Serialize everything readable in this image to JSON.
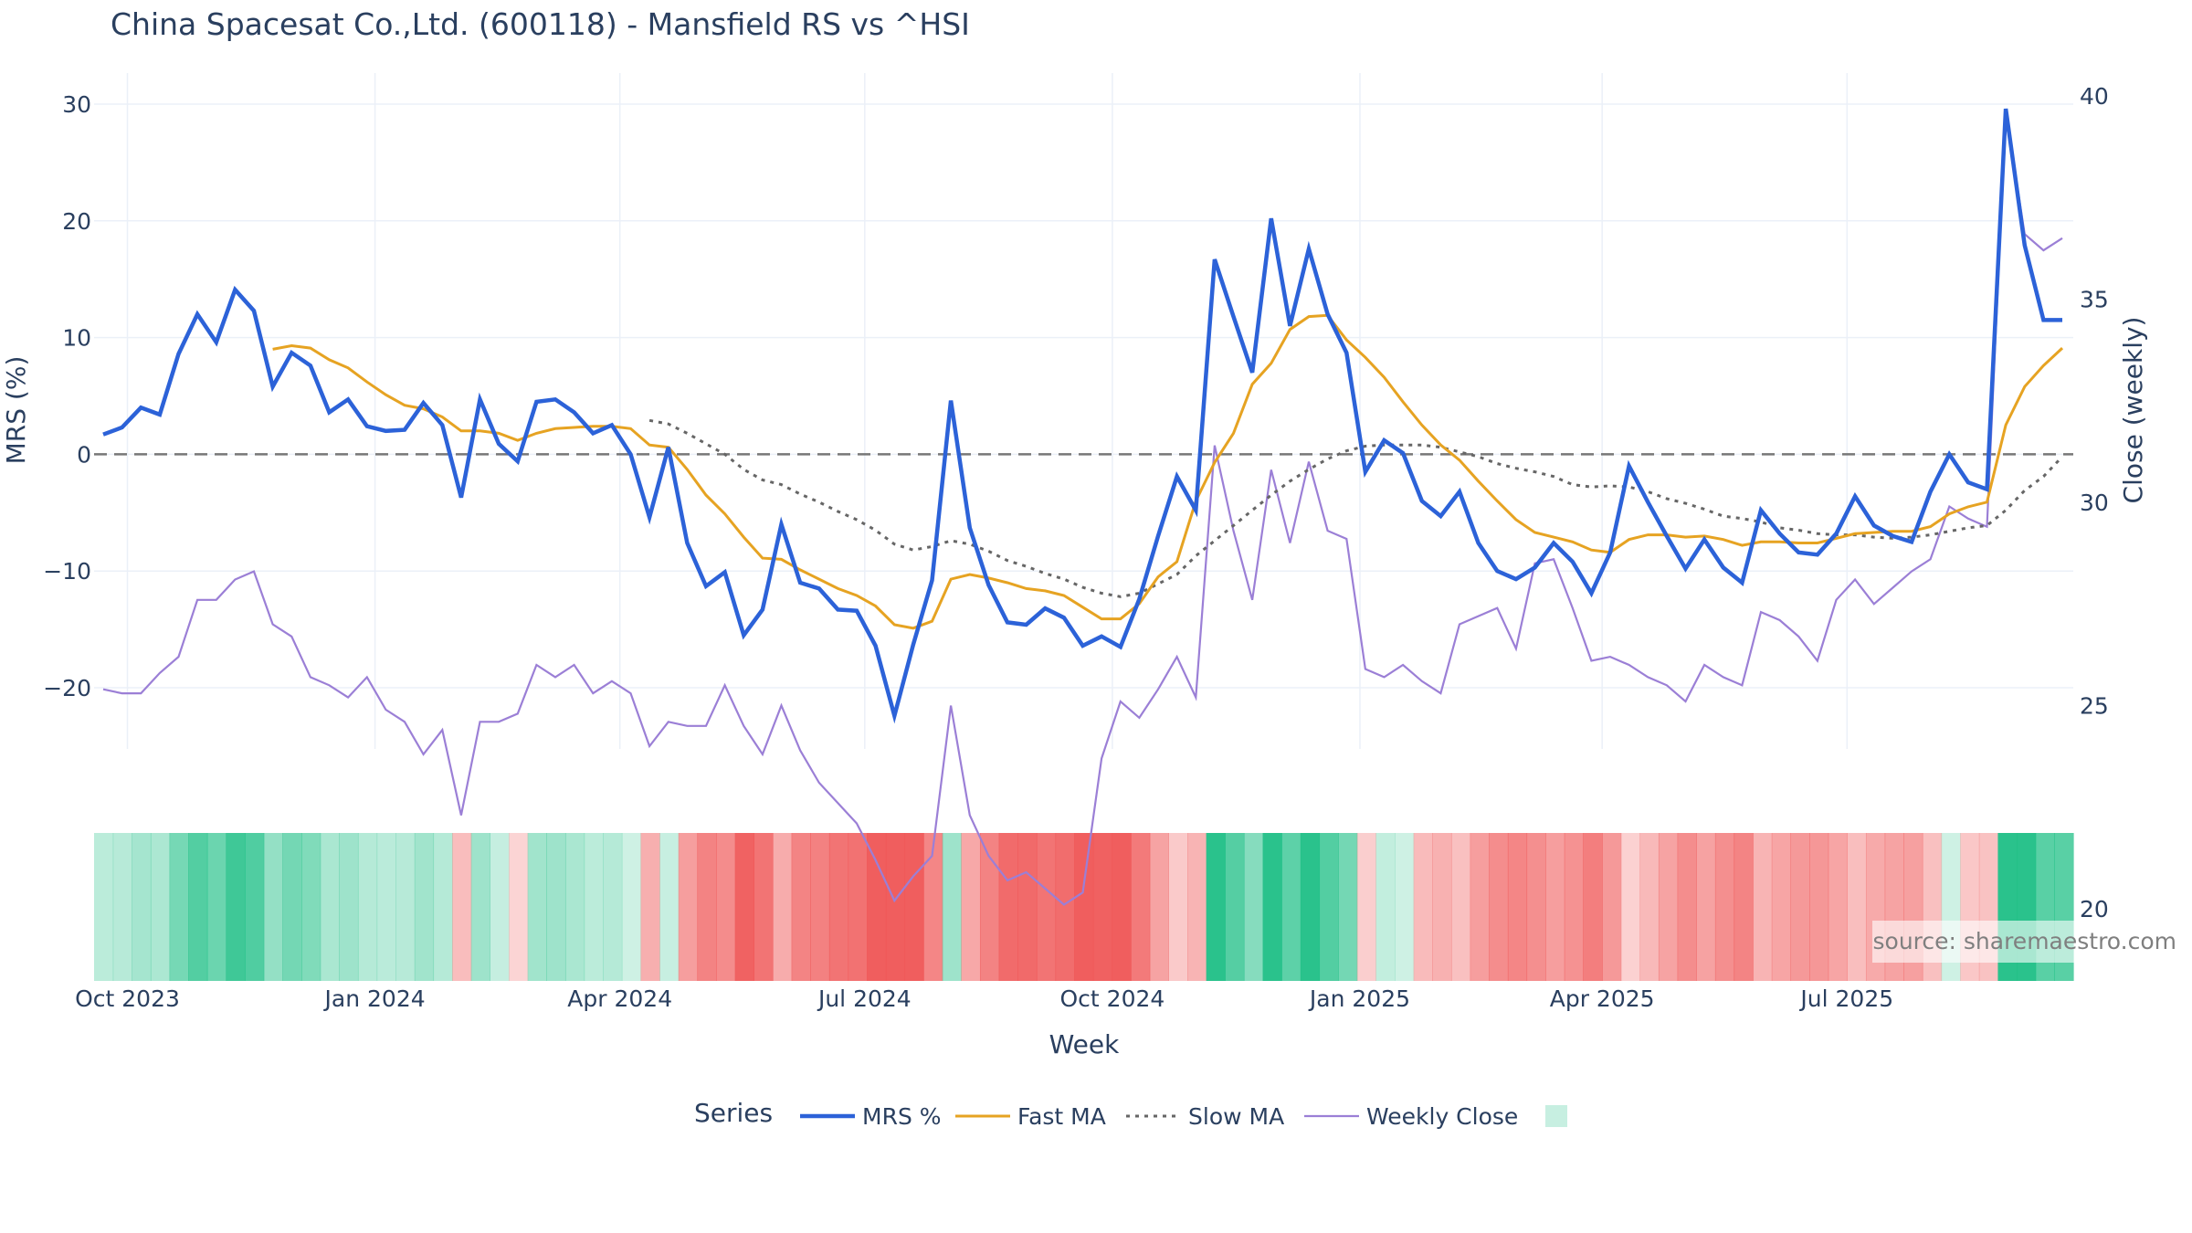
{
  "title": "China Spacesat Co.,Ltd. (600118) - Mansfield RS vs ^HSI",
  "source": "source: sharemaestro.com",
  "legend": {
    "title": "Series",
    "items": [
      {
        "label": "MRS %",
        "color": "#2c62d8",
        "style": "solid-thick"
      },
      {
        "label": "Fast MA",
        "color": "#e6a322",
        "style": "solid"
      },
      {
        "label": "Slow MA",
        "color": "#666666",
        "style": "dotted"
      },
      {
        "label": "Weekly Close",
        "color": "#9b7fd6",
        "style": "solid-thin"
      }
    ]
  },
  "colors": {
    "mrs": "#2c62d8",
    "fast": "#e6a322",
    "slow": "#666666",
    "close": "#9b7fd6",
    "green": "#1fbf86",
    "red": "#ef5555",
    "grid": "#ebf0f8"
  },
  "chart_data": {
    "type": "line",
    "title": "China Spacesat Co.,Ltd. (600118) - Mansfield RS vs ^HSI",
    "xlabel": "Week",
    "ylabel": "MRS (%)",
    "y2label": "Close (weekly)",
    "ylim": [
      -25,
      30
    ],
    "y2lim": [
      20,
      40
    ],
    "yticks": [
      -20,
      -10,
      0,
      10,
      20,
      30
    ],
    "y2ticks": [
      20,
      25,
      30,
      35,
      40
    ],
    "xticks": [
      "Oct 2023",
      "Jan 2024",
      "Apr 2024",
      "Jul 2024",
      "Oct 2024",
      "Jan 2025",
      "Apr 2025",
      "Jul 2025"
    ],
    "x_start": "2023-09-22",
    "x_step_days": 7,
    "series": [
      {
        "name": "MRS %",
        "values": [
          1.7,
          2.3,
          4.0,
          3.4,
          8.6,
          12.0,
          9.6,
          14.1,
          12.3,
          5.8,
          8.7,
          7.6,
          3.6,
          4.7,
          2.4,
          2.0,
          2.1,
          4.4,
          2.5,
          -3.7,
          4.7,
          0.9,
          -0.6,
          4.5,
          4.7,
          3.6,
          1.8,
          2.5,
          0.0,
          -5.4,
          0.6,
          -7.6,
          -11.3,
          -10.1,
          -15.5,
          -13.3,
          -6.0,
          -11.0,
          -11.5,
          -13.3,
          -13.4,
          -16.4,
          -22.4,
          -16.3,
          -10.8,
          4.6,
          -6.3,
          -11.2,
          -14.4,
          -14.6,
          -13.2,
          -14.0,
          -16.4,
          -15.6,
          -16.5,
          -12.4,
          -7.0,
          -1.9,
          -4.8,
          16.7,
          11.8,
          7.0,
          20.2,
          11.0,
          17.6,
          12.0,
          8.7,
          -1.5,
          1.2,
          0.1,
          -4.0,
          -5.3,
          -3.2,
          -7.6,
          -10.0,
          -10.7,
          -9.7,
          -7.6,
          -9.2,
          -11.9,
          -8.4,
          -1.0,
          -4.1,
          -7.0,
          -9.8,
          -7.3,
          -9.7,
          -11.0,
          -4.8,
          -6.8,
          -8.4,
          -8.6,
          -6.8,
          -3.6,
          -6.1,
          -7.0,
          -7.5,
          -3.2,
          0.0,
          -2.4,
          -3.0,
          29.6,
          17.9,
          11.5,
          11.5
        ]
      },
      {
        "name": "Fast MA",
        "values": [
          null,
          null,
          null,
          null,
          null,
          null,
          null,
          null,
          null,
          9.0,
          9.3,
          9.1,
          8.1,
          7.4,
          6.2,
          5.1,
          4.2,
          3.9,
          3.2,
          2.0,
          2.0,
          1.8,
          1.2,
          1.8,
          2.2,
          2.3,
          2.4,
          2.4,
          2.2,
          0.8,
          0.6,
          -1.3,
          -3.5,
          -5.1,
          -7.1,
          -8.9,
          -9.0,
          -9.9,
          -10.7,
          -11.5,
          -12.1,
          -13.0,
          -14.6,
          -14.9,
          -14.3,
          -10.7,
          -10.3,
          -10.6,
          -11.0,
          -11.5,
          -11.7,
          -12.1,
          -13.1,
          -14.1,
          -14.1,
          -12.8,
          -10.5,
          -9.2,
          -4.0,
          -0.7,
          1.8,
          6.0,
          7.8,
          10.7,
          11.8,
          11.9,
          9.8,
          8.3,
          6.6,
          4.5,
          2.5,
          0.8,
          -0.5,
          -2.3,
          -4.0,
          -5.6,
          -6.7,
          -7.1,
          -7.5,
          -8.2,
          -8.4,
          -7.3,
          -6.9,
          -6.9,
          -7.1,
          -7.0,
          -7.3,
          -7.8,
          -7.5,
          -7.5,
          -7.6,
          -7.6,
          -7.2,
          -6.8,
          -6.7,
          -6.6,
          -6.6,
          -6.2,
          -5.1,
          -4.5,
          -4.1,
          2.5,
          5.8,
          7.6,
          9.1
        ]
      },
      {
        "name": "Slow MA",
        "values": [
          null,
          null,
          null,
          null,
          null,
          null,
          null,
          null,
          null,
          null,
          null,
          null,
          null,
          null,
          null,
          null,
          null,
          null,
          null,
          null,
          null,
          null,
          null,
          null,
          null,
          null,
          null,
          null,
          null,
          2.9,
          2.6,
          1.8,
          0.9,
          0.0,
          -1.3,
          -2.2,
          -2.6,
          -3.4,
          -4.1,
          -4.9,
          -5.6,
          -6.5,
          -7.7,
          -8.2,
          -7.9,
          -7.4,
          -7.7,
          -8.3,
          -9.1,
          -9.6,
          -10.2,
          -10.7,
          -11.4,
          -11.9,
          -12.2,
          -11.9,
          -11.1,
          -10.3,
          -8.7,
          -7.4,
          -6.1,
          -4.8,
          -3.5,
          -2.3,
          -1.3,
          -0.4,
          0.3,
          0.7,
          0.8,
          0.8,
          0.8,
          0.6,
          0.2,
          -0.2,
          -0.8,
          -1.2,
          -1.5,
          -1.9,
          -2.6,
          -2.8,
          -2.7,
          -2.8,
          -3.2,
          -3.8,
          -4.2,
          -4.7,
          -5.3,
          -5.5,
          -5.8,
          -6.3,
          -6.5,
          -6.8,
          -6.9,
          -6.9,
          -7.1,
          -7.2,
          -7.1,
          -6.9,
          -6.6,
          -6.3,
          -6.1,
          -4.8,
          -3.1,
          -1.9,
          -0.2
        ]
      }
    ],
    "secondary_series": [
      {
        "name": "Weekly Close",
        "values": [
          25.4,
          25.3,
          25.3,
          25.8,
          26.2,
          27.6,
          27.6,
          28.1,
          28.3,
          27.0,
          26.7,
          25.7,
          25.5,
          25.2,
          25.7,
          24.9,
          24.6,
          23.8,
          24.4,
          22.3,
          24.6,
          24.6,
          24.8,
          26.0,
          25.7,
          26.0,
          25.3,
          25.6,
          25.3,
          24.0,
          24.6,
          24.5,
          24.5,
          25.5,
          24.5,
          23.8,
          25.0,
          23.9,
          23.1,
          22.6,
          22.1,
          21.2,
          20.2,
          20.8,
          21.3,
          25.0,
          22.3,
          21.3,
          20.7,
          20.9,
          20.5,
          20.1,
          20.4,
          23.7,
          25.1,
          24.7,
          25.4,
          26.2,
          25.2,
          31.4,
          29.3,
          27.6,
          30.8,
          29.0,
          31.0,
          29.3,
          29.1,
          25.9,
          25.7,
          26.0,
          25.6,
          25.3,
          27.0,
          27.2,
          27.4,
          26.4,
          28.5,
          28.6,
          27.4,
          26.1,
          26.2,
          26.0,
          25.7,
          25.5,
          25.1,
          26.0,
          25.7,
          25.5,
          27.3,
          27.1,
          26.7,
          26.1,
          27.6,
          28.1,
          27.5,
          27.9,
          28.3,
          28.6,
          29.9,
          29.6,
          29.4,
          39.6,
          36.6,
          36.2,
          36.5
        ]
      }
    ],
    "heatmap_strip": {
      "note": "weekly MRS regime strip",
      "values_from": "MRS %"
    }
  }
}
